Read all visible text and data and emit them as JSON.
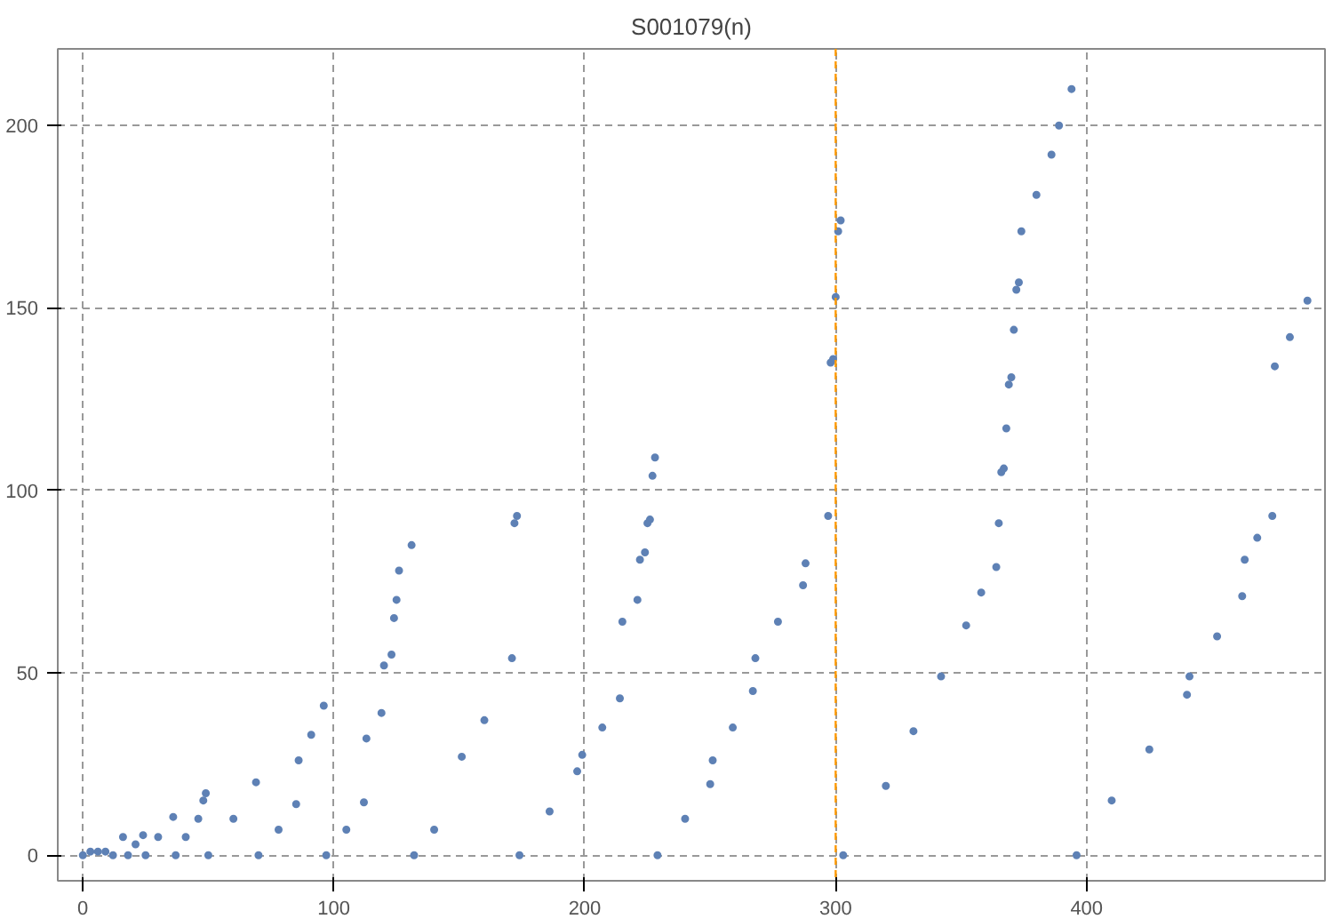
{
  "chart_data": {
    "type": "scatter",
    "title": "S001079(n)",
    "x": [
      0,
      3,
      6,
      9,
      12,
      16,
      18,
      21,
      24,
      25,
      30,
      36,
      37,
      41,
      46,
      48,
      49,
      50,
      60,
      69,
      70,
      78,
      85,
      86,
      91,
      96,
      97,
      105,
      112,
      113,
      119,
      120,
      123,
      124,
      125,
      126,
      131,
      132,
      140,
      151,
      160,
      171,
      172,
      173,
      174,
      186,
      197,
      199,
      207,
      214,
      215,
      221,
      222,
      224,
      225,
      226,
      227,
      228,
      229,
      240,
      250,
      251,
      259,
      267,
      268,
      277,
      287,
      288,
      297,
      298,
      299,
      300,
      301,
      302,
      303,
      320,
      331,
      342,
      352,
      358,
      364,
      365,
      366,
      367,
      368,
      369,
      370,
      371,
      372,
      373,
      374,
      380,
      386,
      389,
      394,
      396,
      410,
      425,
      440,
      441,
      452,
      462,
      463,
      468,
      474,
      475,
      481,
      488
    ],
    "series": [
      {
        "color": "#5e81b5",
        "values": [
          0,
          1,
          1,
          1,
          0,
          5,
          0,
          3,
          5.5,
          0,
          5,
          10.5,
          0,
          5,
          10,
          15,
          17,
          0,
          10,
          20,
          0,
          7,
          14,
          26,
          33,
          41,
          0,
          7,
          14.5,
          32,
          39,
          52,
          55,
          65,
          70,
          78,
          85,
          0,
          7,
          27,
          37,
          54,
          91,
          93,
          0,
          12,
          23,
          27.5,
          35,
          43,
          64,
          70,
          81,
          83,
          91,
          92,
          104,
          109,
          0,
          10,
          19.5,
          26,
          35,
          45,
          54,
          64,
          74,
          80,
          93,
          135,
          136,
          153,
          171,
          174,
          0,
          19,
          34,
          49,
          63,
          72,
          79,
          91,
          105,
          106,
          117,
          129,
          131,
          144,
          155,
          157,
          171,
          181,
          192,
          200,
          210,
          0,
          15,
          29,
          44,
          49,
          60,
          71,
          81,
          87,
          93,
          134,
          142,
          152
        ]
      }
    ],
    "xlim": [
      -10,
      495
    ],
    "ylim": [
      -7,
      221
    ],
    "xticks": [
      0,
      100,
      200,
      300,
      400
    ],
    "yticks": [
      0,
      50,
      100,
      150,
      200
    ],
    "grid": true,
    "marker": "circle",
    "ref_lines": [
      {
        "axis": "x",
        "value": 300,
        "color": "#ff9900",
        "line_style": "dashed"
      }
    ]
  }
}
